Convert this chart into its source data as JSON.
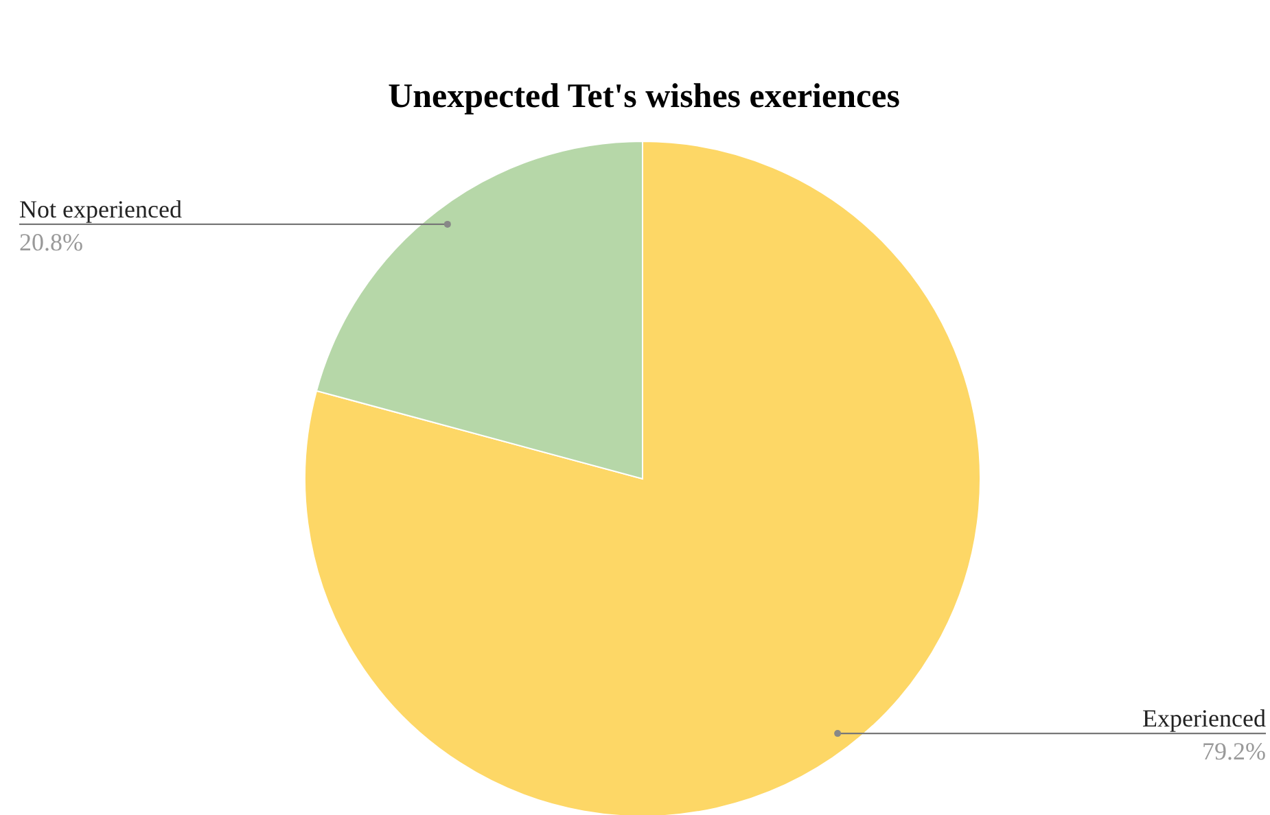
{
  "chart_data": {
    "type": "pie",
    "title": "Unexpected Tet's wishes exeriences",
    "categories": [
      "Experienced",
      "Not experienced"
    ],
    "values": [
      79.2,
      20.8
    ],
    "value_labels": [
      "79.2%",
      "20.8%"
    ],
    "colors": [
      "#fdd766",
      "#b6d7a8"
    ]
  }
}
